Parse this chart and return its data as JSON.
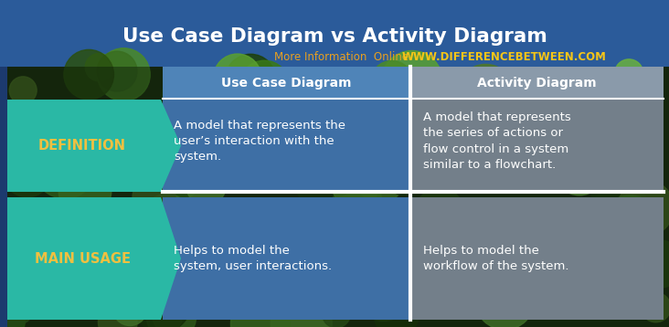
{
  "title": "Use Case Diagram vs Activity Diagram",
  "subtitle_normal": "More Information  Online  ",
  "subtitle_bold": "WWW.DIFFERENCEBETWEEN.COM",
  "col1_header": "Use Case Diagram",
  "col2_header": "Activity Diagram",
  "row1_label": "DEFINITION",
  "row2_label": "MAIN USAGE",
  "row1_col1": "A model that represents the\nuser’s interaction with the\nsystem.",
  "row1_col2": "A model that represents\nthe series of actions or\nflow control in a system\nsimilar to a flowchart.",
  "row2_col1": "Helps to model the\nsystem, user interactions.",
  "row2_col2": "Helps to model the\nworkflow of the system.",
  "top_header_bg": "#2b5b9a",
  "photo_bg_top": "#3a6e28",
  "photo_bg_dark": "#1a2e10",
  "col1_header_bg": "#4f84b8",
  "col2_header_bg": "#8a9aaa",
  "col1_content_bg": "#3e6fa5",
  "col2_content_bg": "#737f8a",
  "label_teal": "#2ab8a5",
  "title_color": "#ffffff",
  "subtitle_normal_color": "#e8a020",
  "subtitle_bold_color": "#f5c518",
  "header_text_color": "#ffffff",
  "col_text_color": "#ffffff",
  "label_text_color": "#f0c040",
  "divider_color": "#ffffff",
  "left_strip_color": "#1c3a6e"
}
